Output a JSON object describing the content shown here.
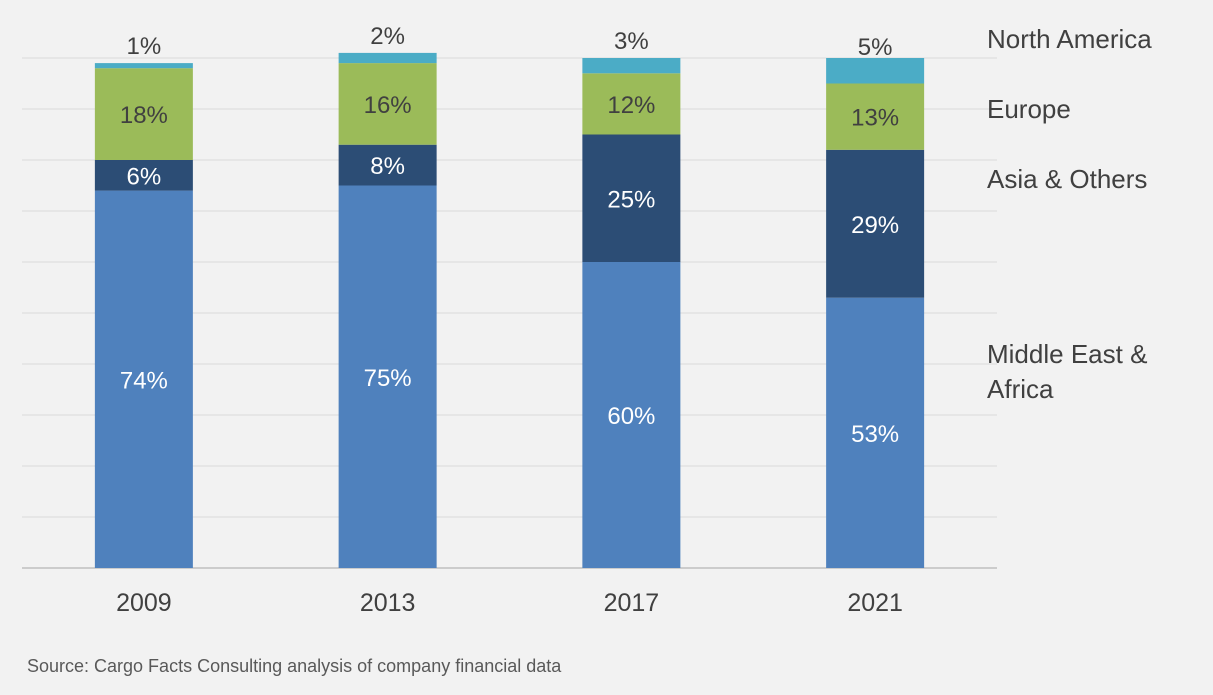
{
  "chart_data": {
    "type": "stacked-bar",
    "categories": [
      "2009",
      "2013",
      "2017",
      "2021"
    ],
    "series": [
      {
        "name": "Middle East & Africa",
        "values": [
          74,
          75,
          60,
          53
        ],
        "color": "#4f81bd",
        "label_color": "#ffffff"
      },
      {
        "name": "Asia & Others",
        "values": [
          6,
          8,
          25,
          29
        ],
        "color": "#2c4d75",
        "label_color": "#ffffff"
      },
      {
        "name": "Europe",
        "values": [
          18,
          16,
          12,
          13
        ],
        "color": "#9bbb59",
        "label_color": "#404040"
      },
      {
        "name": "North America",
        "values": [
          1,
          2,
          3,
          5
        ],
        "color": "#4bacc6",
        "label_color": "#404040"
      }
    ],
    "data_labels": [
      [
        "74%",
        "75%",
        "60%",
        "53%"
      ],
      [
        "6%",
        "8%",
        "25%",
        "29%"
      ],
      [
        "18%",
        "16%",
        "12%",
        "13%"
      ],
      [
        "1%",
        "2%",
        "3%",
        "5%"
      ]
    ],
    "ylim": [
      0,
      100
    ],
    "grid": true,
    "legend_position": "right"
  },
  "source_note": "Source: Cargo Facts Consulting analysis of company financial data"
}
